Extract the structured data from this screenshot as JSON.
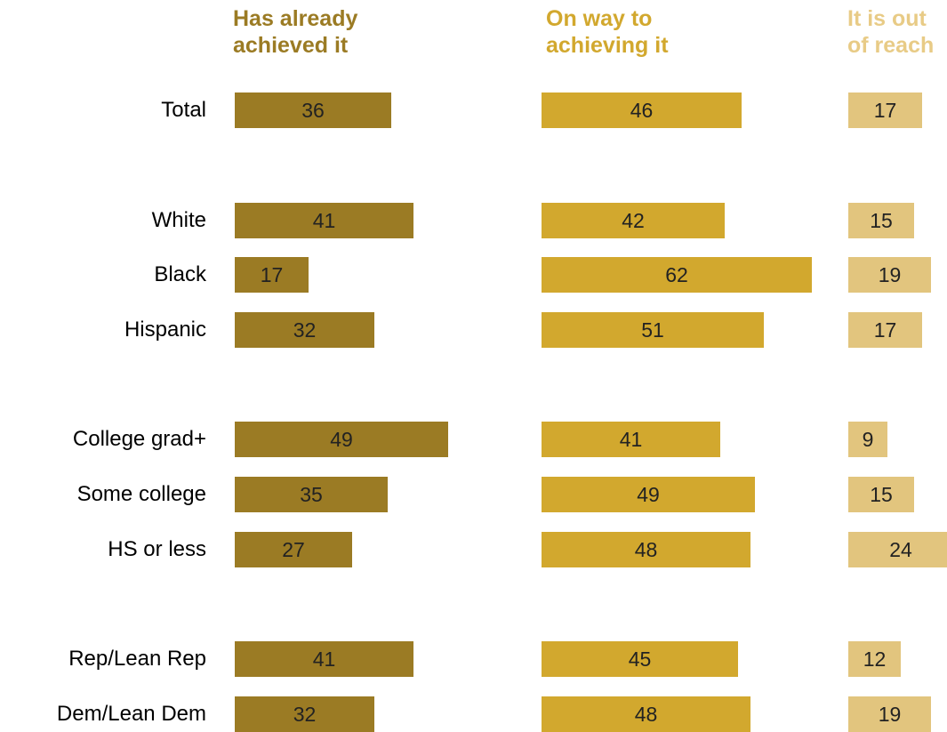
{
  "chart_data": {
    "type": "bar",
    "title": "",
    "xlabel": "",
    "ylabel": "",
    "categories": [
      "Total",
      "White",
      "Black",
      "Hispanic",
      "College grad+",
      "Some college",
      "HS or less",
      "Rep/Lean Rep",
      "Dem/Lean Dem"
    ],
    "groups": [
      [
        "Total"
      ],
      [
        "White",
        "Black",
        "Hispanic"
      ],
      [
        "College grad+",
        "Some college",
        "HS or less"
      ],
      [
        "Rep/Lean Rep",
        "Dem/Lean Dem"
      ]
    ],
    "series": [
      {
        "name": "Has already achieved it",
        "header_lines": [
          "Has already",
          "achieved it"
        ],
        "color": "#9B7B24",
        "values": [
          36,
          41,
          17,
          32,
          49,
          35,
          27,
          41,
          32
        ]
      },
      {
        "name": "On way to achieving it",
        "header_lines": [
          "On way to",
          "achieving it"
        ],
        "color": "#D2A82E",
        "values": [
          46,
          42,
          62,
          51,
          41,
          49,
          48,
          45,
          48
        ]
      },
      {
        "name": "It is out of reach",
        "header_lines": [
          "It is out",
          "of reach"
        ],
        "color": "#E2C57E",
        "values": [
          17,
          15,
          19,
          17,
          9,
          15,
          24,
          12,
          19
        ]
      }
    ],
    "header_colors": [
      "#9B7B24",
      "#D2A82E",
      "#E8CB86"
    ],
    "label_color": "#222222"
  }
}
